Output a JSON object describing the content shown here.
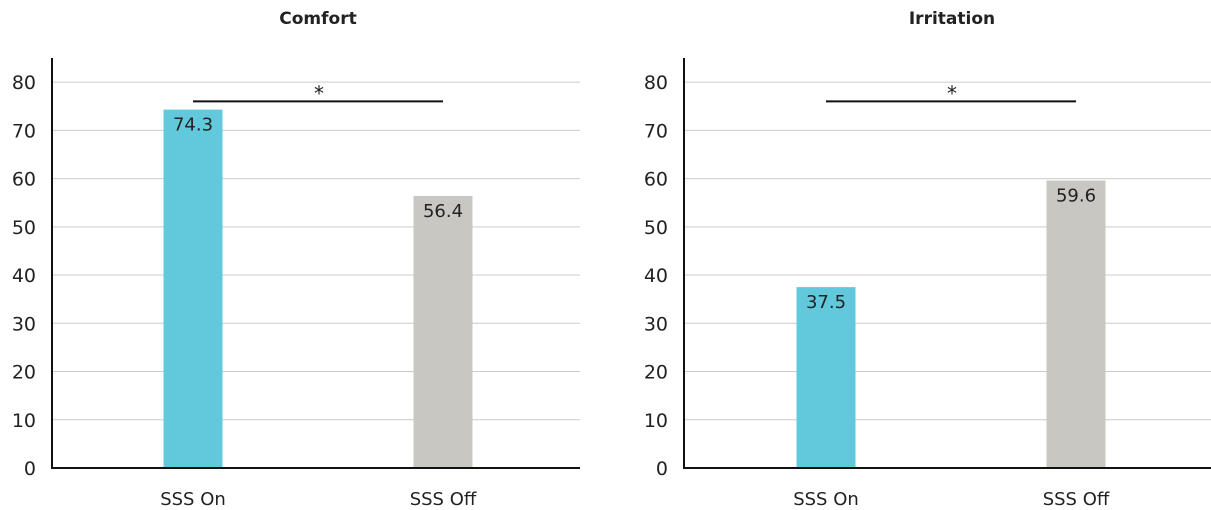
{
  "colors": {
    "sss_on": "#62c9dd",
    "sss_off": "#c8c7c1"
  },
  "chart_data": [
    {
      "type": "bar",
      "title": "Comfort",
      "categories": [
        "SSS On",
        "SSS Off"
      ],
      "values": [
        74.3,
        56.4
      ],
      "data_labels": [
        "74.3",
        "56.4"
      ],
      "ylim": [
        0,
        85
      ],
      "yticks": [
        0,
        10,
        20,
        30,
        40,
        50,
        60,
        70,
        80
      ],
      "ytick_labels": [
        "0",
        "10",
        "20",
        "30",
        "40",
        "50",
        "60",
        "70",
        "80"
      ],
      "grid": true,
      "significance": {
        "label": "*",
        "level": 76
      }
    },
    {
      "type": "bar",
      "title": "Irritation",
      "categories": [
        "SSS On",
        "SSS Off"
      ],
      "values": [
        37.5,
        59.6
      ],
      "data_labels": [
        "37.5",
        "59.6"
      ],
      "ylim": [
        0,
        85
      ],
      "yticks": [
        0,
        10,
        20,
        30,
        40,
        50,
        60,
        70,
        80
      ],
      "ytick_labels": [
        "0",
        "10",
        "20",
        "30",
        "40",
        "50",
        "60",
        "70",
        "80"
      ],
      "grid": true,
      "significance": {
        "label": "*",
        "level": 76
      }
    }
  ]
}
